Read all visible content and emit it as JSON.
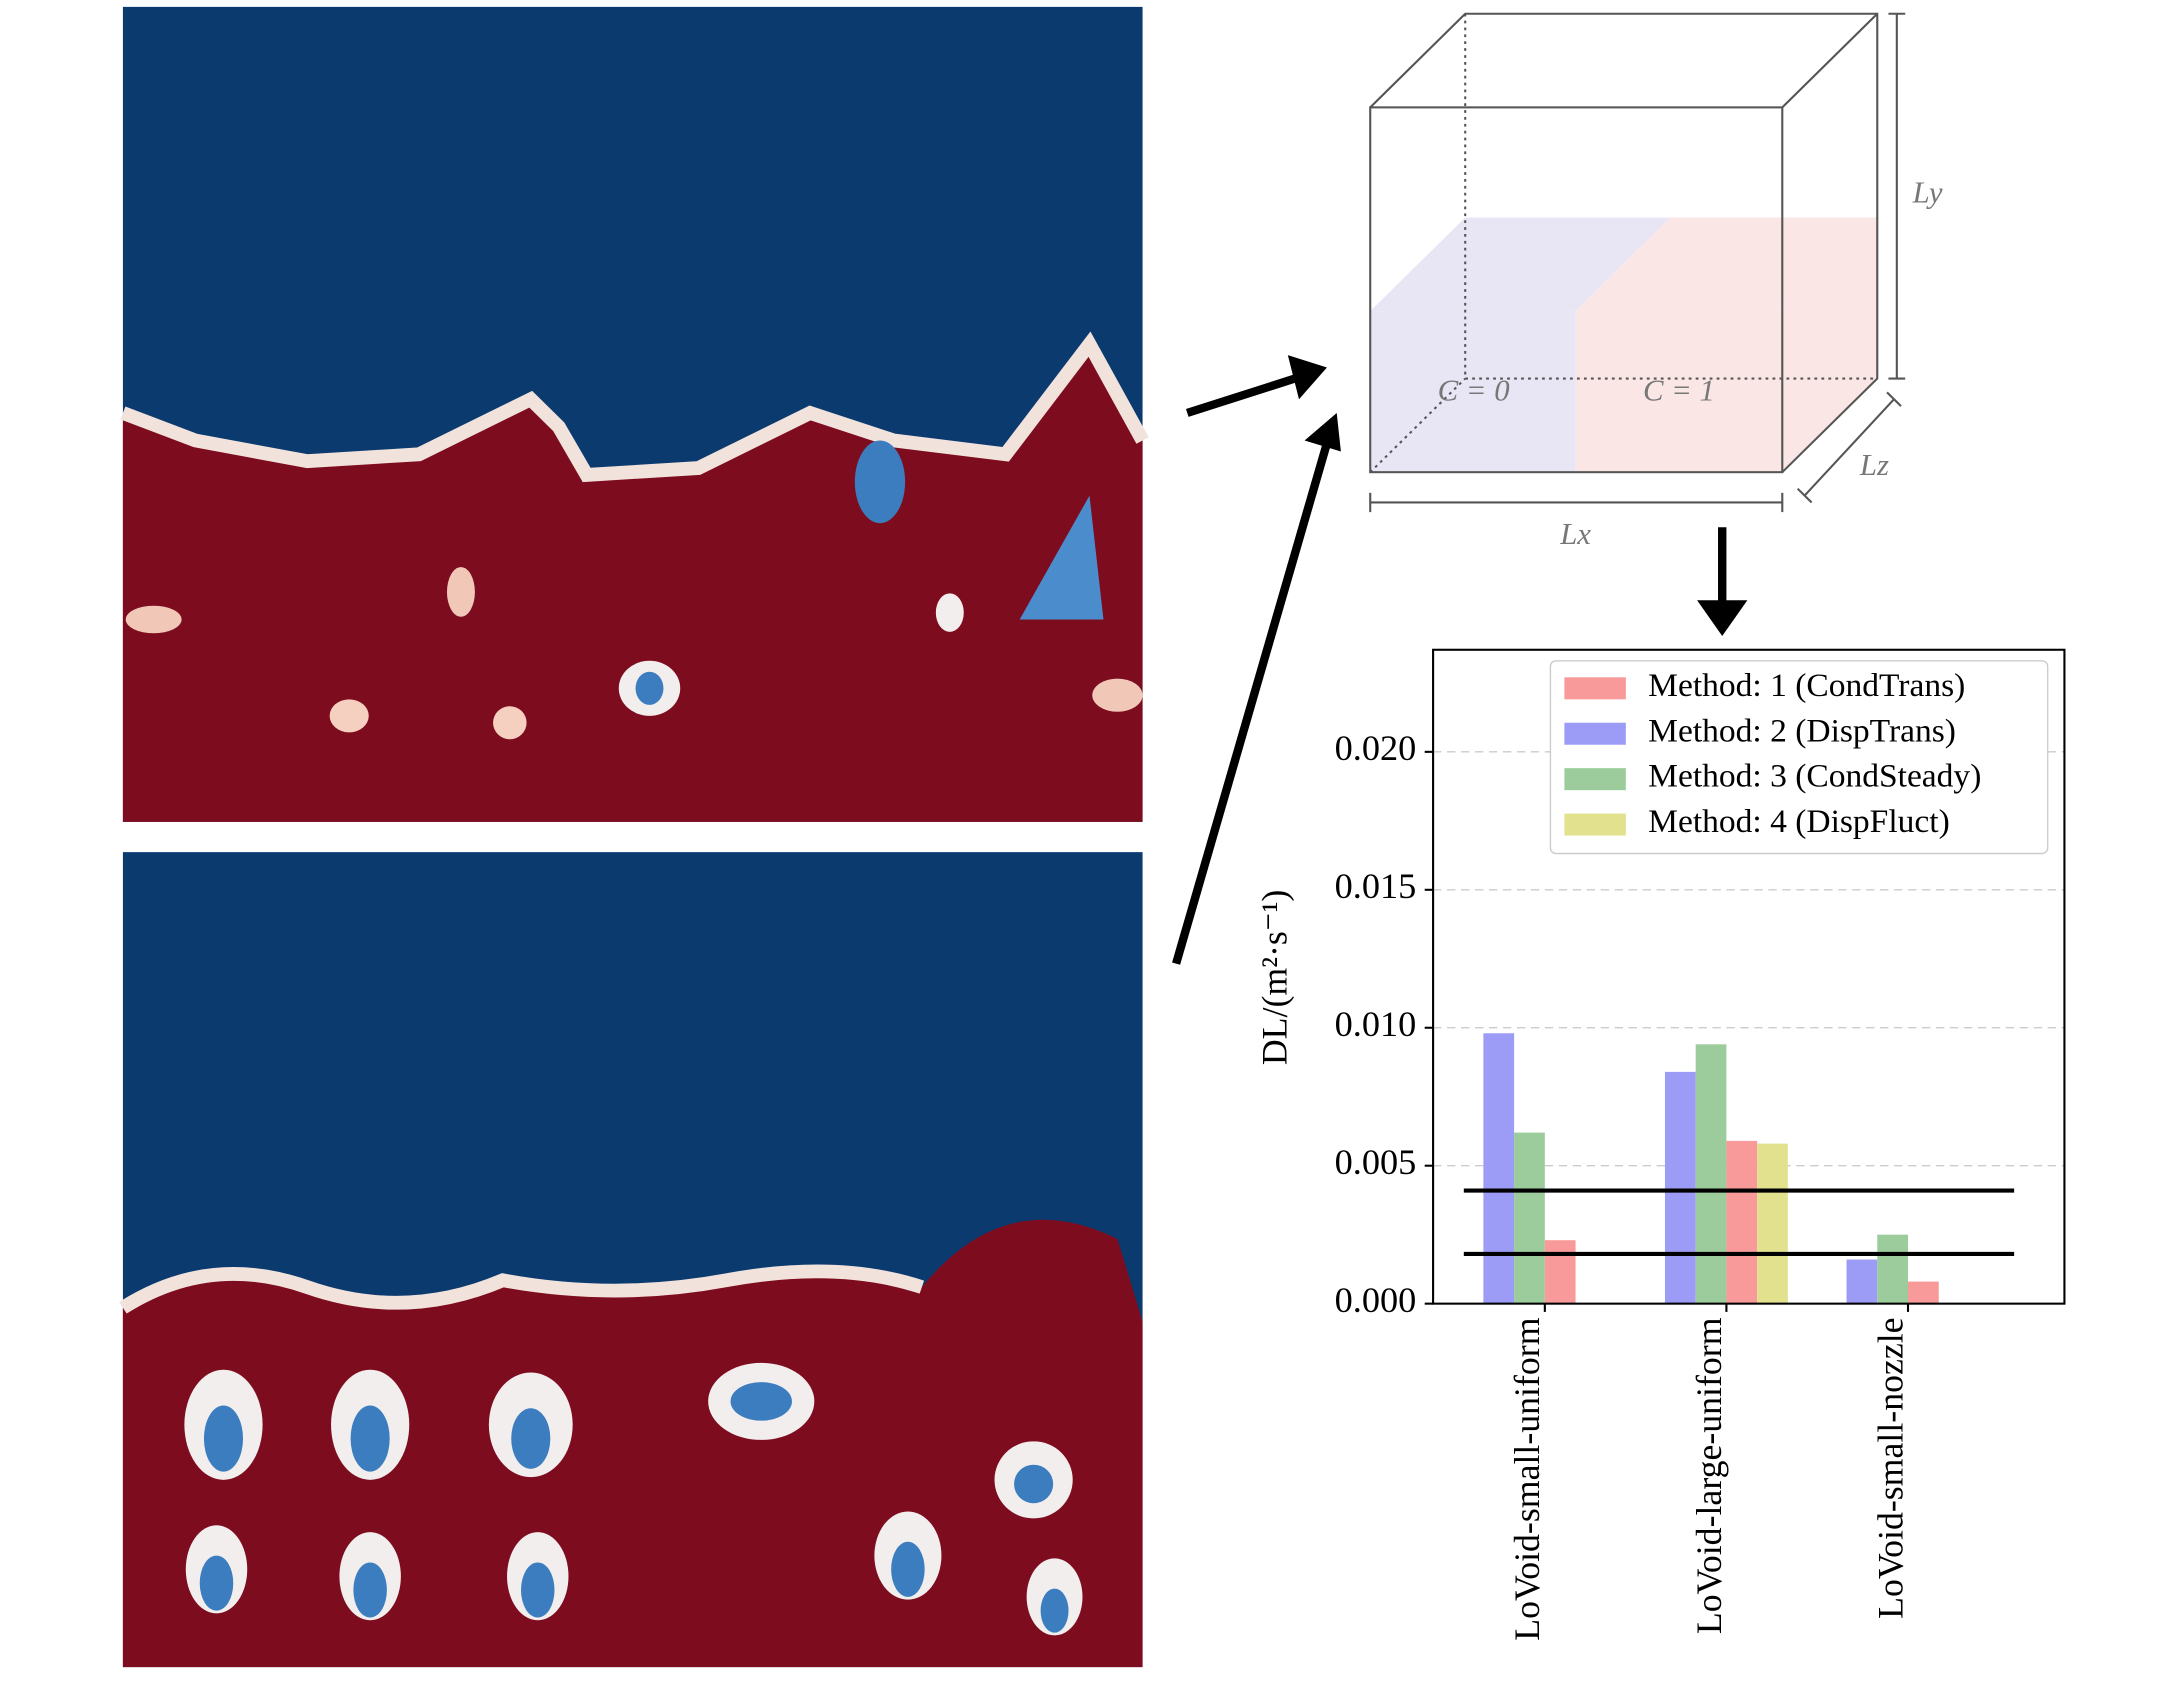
{
  "diagram": {
    "labels": [
      "C = 0",
      "C = 1",
      "Lx",
      "Ly",
      "Lz"
    ]
  },
  "chart_data": {
    "type": "bar",
    "y_label": "DL/(m²·s⁻¹)",
    "categories": [
      "LoVoid-small-uniform",
      "LoVoid-large-uniform",
      "LoVoid-small-nozzle"
    ],
    "series": [
      {
        "name": "Method: 1 (CondTrans)",
        "color": "#f89a9a",
        "values": [
          0.0023,
          0.0059,
          0.0008
        ]
      },
      {
        "name": "Method: 2 (DispTrans)",
        "color": "#9c9cf6",
        "values": [
          0.0098,
          0.0084,
          0.0016
        ]
      },
      {
        "name": "Method: 3 (CondSteady)",
        "color": "#9ccc9c",
        "values": [
          0.0062,
          0.0094,
          0.0025
        ]
      },
      {
        "name": "Method: 4 (DispFluct)",
        "color": "#e2e28e",
        "values": [
          null,
          0.0058,
          null
        ]
      }
    ],
    "hlines": [
      0.0041,
      0.0018
    ],
    "ylim": [
      0,
      0.0237
    ],
    "yticks": [
      {
        "value": 0,
        "label": "0.000"
      },
      {
        "value": 0.005,
        "label": "0.005"
      },
      {
        "value": 0.01,
        "label": "0.010"
      },
      {
        "value": 0.015,
        "label": "0.015"
      },
      {
        "value": 0.02,
        "label": "0.020"
      }
    ],
    "grid": true,
    "legend": "upper right"
  }
}
